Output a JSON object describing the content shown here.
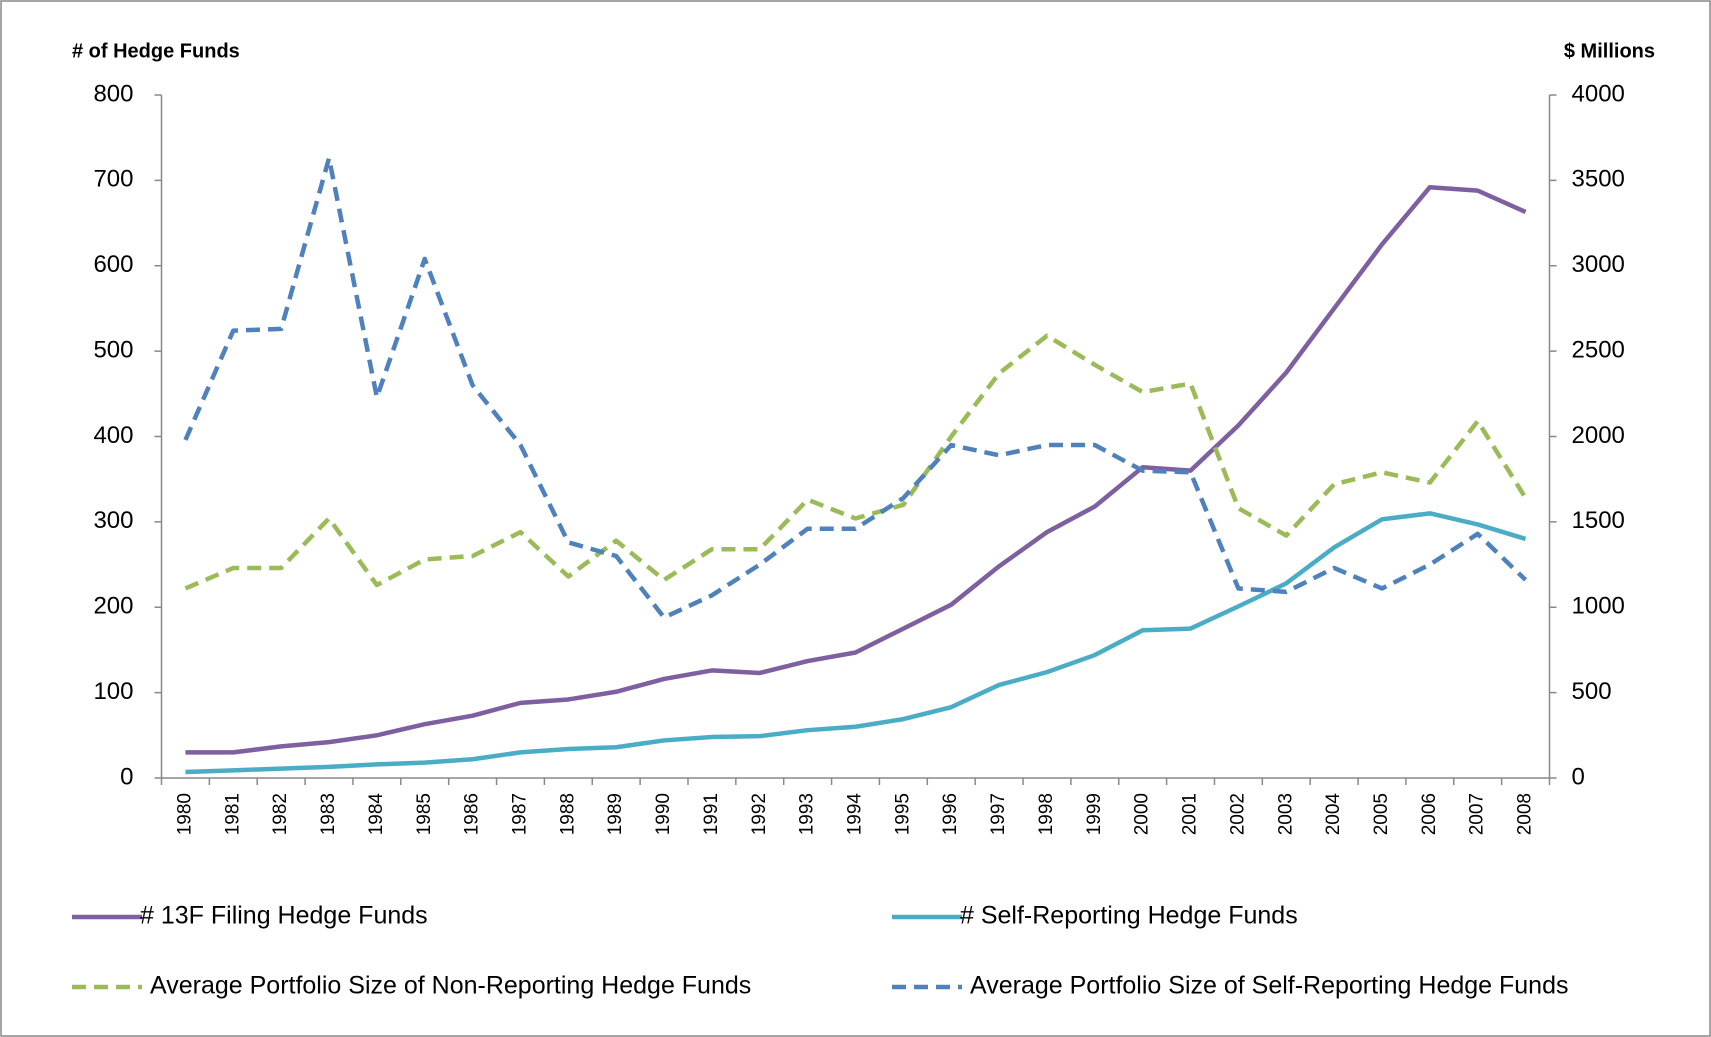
{
  "chart_data": {
    "type": "line",
    "y_label": "# of Hedge Funds",
    "y2_label": "$ Millions",
    "categories": [
      "1980",
      "1981",
      "1982",
      "1983",
      "1984",
      "1985",
      "1986",
      "1987",
      "1988",
      "1989",
      "1990",
      "1991",
      "1992",
      "1993",
      "1994",
      "1995",
      "1996",
      "1997",
      "1998",
      "1999",
      "2000",
      "2001",
      "2002",
      "2003",
      "2004",
      "2005",
      "2006",
      "2007",
      "2008"
    ],
    "ylim": [
      0,
      800
    ],
    "yticks": [
      0,
      100,
      200,
      300,
      400,
      500,
      600,
      700,
      800
    ],
    "y2lim": [
      0,
      4000
    ],
    "y2ticks": [
      0,
      500,
      1000,
      1500,
      2000,
      2500,
      3000,
      3500,
      4000
    ],
    "series": [
      {
        "name": "# 13F Filing Hedge Funds",
        "color": "#7e5fa0",
        "dashed": false,
        "values": [
          30,
          30,
          37,
          42,
          50,
          63,
          73,
          88,
          92,
          101,
          116,
          126,
          123,
          137,
          147,
          175,
          203,
          248,
          288,
          318,
          364,
          360,
          413,
          475,
          550,
          625,
          692,
          688,
          663
        ]
      },
      {
        "name": "# Self-Reporting Hedge Funds",
        "color": "#4bacc6",
        "dashed": false,
        "values": [
          7,
          9,
          11,
          13,
          16,
          18,
          22,
          30,
          34,
          36,
          44,
          48,
          49,
          56,
          60,
          69,
          83,
          109,
          124,
          144,
          173,
          175,
          201,
          228,
          270,
          303,
          310,
          297,
          280
        ]
      },
      {
        "name": "Average Portfolio Size of Non-Reporting Hedge Funds",
        "color": "#9bbb59",
        "dashed": true,
        "axis": "y2",
        "values": [
          1110,
          1230,
          1230,
          1520,
          1130,
          1280,
          1300,
          1440,
          1180,
          1390,
          1160,
          1340,
          1340,
          1630,
          1520,
          1600,
          2000,
          2370,
          2590,
          2420,
          2260,
          2310,
          1580,
          1420,
          1720,
          1790,
          1730,
          2090,
          1640
        ]
      },
      {
        "name": "Average Portfolio Size of Self-Reporting Hedge Funds",
        "color": "#4f81bd",
        "dashed": true,
        "axis": "y2",
        "values": [
          1980,
          2620,
          2630,
          3630,
          2230,
          3040,
          2300,
          1950,
          1380,
          1300,
          940,
          1070,
          1250,
          1460,
          1460,
          1640,
          1950,
          1890,
          1950,
          1950,
          1800,
          1790,
          1110,
          1090,
          1230,
          1110,
          1250,
          1430,
          1160
        ]
      }
    ]
  }
}
